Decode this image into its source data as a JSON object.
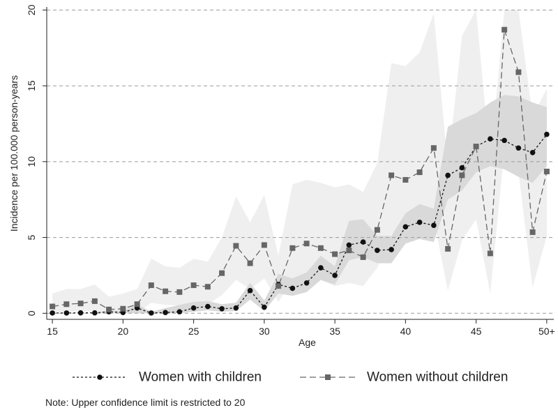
{
  "chart_data": {
    "type": "line",
    "xlabel": "Age",
    "ylabel": "Incidence per 100.000 person-years",
    "x": [
      15,
      16,
      17,
      18,
      19,
      20,
      21,
      22,
      23,
      24,
      25,
      26,
      27,
      28,
      29,
      30,
      31,
      32,
      33,
      34,
      35,
      36,
      37,
      38,
      39,
      40,
      41,
      42,
      43,
      44,
      45,
      46,
      47,
      48,
      49,
      50
    ],
    "x_tick_labels": [
      "15",
      "20",
      "25",
      "30",
      "35",
      "40",
      "45",
      "50+"
    ],
    "x_tick_values": [
      15,
      20,
      25,
      30,
      35,
      40,
      45,
      50
    ],
    "xlim": [
      14.6,
      50.5
    ],
    "y_tick_labels": [
      "0",
      "5",
      "10",
      "15",
      "20"
    ],
    "y_tick_values": [
      0,
      5,
      10,
      15,
      20
    ],
    "ylim": [
      -0.4,
      20.2
    ],
    "grid": "horizontal dashed at y ticks",
    "series": [
      {
        "name": "Women with children",
        "marker": "circle",
        "line_style": "short-dash",
        "color": "#111111",
        "values": [
          0.02,
          0.02,
          0.03,
          0.03,
          0.1,
          0.05,
          0.35,
          0.02,
          0.05,
          0.1,
          0.35,
          0.45,
          0.3,
          0.35,
          1.5,
          0.4,
          1.9,
          1.65,
          2.0,
          3.0,
          2.5,
          4.5,
          4.7,
          4.15,
          4.2,
          5.7,
          6.0,
          5.8,
          9.1,
          9.6,
          11.0,
          11.5,
          11.4,
          10.9,
          10.6,
          11.8
        ],
        "ci_lower": [
          0,
          0,
          0,
          0,
          0,
          0,
          0,
          0,
          0,
          0,
          0.1,
          0.2,
          0.1,
          0.15,
          0.9,
          0.15,
          1.3,
          1.15,
          1.4,
          2.2,
          1.9,
          3.5,
          3.7,
          3.3,
          3.3,
          4.6,
          4.9,
          4.7,
          7.5,
          8.1,
          9.3,
          9.7,
          9.5,
          9.0,
          8.6,
          9.7
        ],
        "ci_upper": [
          0,
          0,
          0,
          0,
          0.2,
          0.15,
          0.6,
          0.1,
          0.35,
          0.55,
          0.75,
          0.8,
          0.6,
          0.7,
          2.0,
          0.85,
          2.6,
          2.3,
          2.7,
          3.8,
          3.1,
          6.1,
          6.2,
          5.1,
          5.1,
          6.6,
          7.2,
          6.9,
          12.3,
          12.8,
          13.2,
          13.9,
          14.4,
          14.3,
          13.9,
          13.6
        ],
        "ci_color": "#d9d9d9"
      },
      {
        "name": "Women without children",
        "marker": "square",
        "line_style": "long-dash",
        "color": "#666666",
        "values": [
          0.45,
          0.6,
          0.65,
          0.8,
          0.25,
          0.3,
          0.6,
          1.85,
          1.45,
          1.4,
          1.85,
          1.75,
          2.65,
          4.45,
          3.3,
          4.5,
          1.8,
          4.3,
          4.6,
          4.3,
          3.9,
          4.15,
          3.7,
          5.5,
          9.1,
          8.8,
          9.3,
          10.9,
          4.25,
          9.1,
          11.0,
          3.95,
          18.7,
          15.9,
          5.35,
          9.35
        ],
        "ci_lower": [
          0.05,
          0.1,
          0.1,
          0.15,
          0.0,
          0.0,
          0.05,
          0.7,
          0.55,
          0.5,
          0.7,
          0.6,
          1.2,
          2.2,
          1.6,
          2.3,
          0.75,
          2.2,
          2.4,
          2.2,
          1.8,
          2.0,
          1.8,
          3.0,
          5.2,
          5.0,
          5.3,
          6.2,
          1.5,
          4.8,
          6.2,
          1.3,
          10.8,
          9.3,
          1.7,
          5.1
        ],
        "ci_upper": [
          1.3,
          1.6,
          1.6,
          1.9,
          1.1,
          1.3,
          1.6,
          3.6,
          3.1,
          3.0,
          3.6,
          3.4,
          5.0,
          7.7,
          6.0,
          7.8,
          3.8,
          8.5,
          8.8,
          8.6,
          8.3,
          8.5,
          8.0,
          9.9,
          16.5,
          16.3,
          17.2,
          19.8,
          9.7,
          18.3,
          20.0,
          10.0,
          20.0,
          20.0,
          13.0,
          14.8
        ],
        "ci_color": "#efefef"
      }
    ],
    "legend": {
      "placement": "bottom",
      "orientation": "horizontal"
    },
    "note": "Note: Upper confidence limit is restricted to 20"
  }
}
